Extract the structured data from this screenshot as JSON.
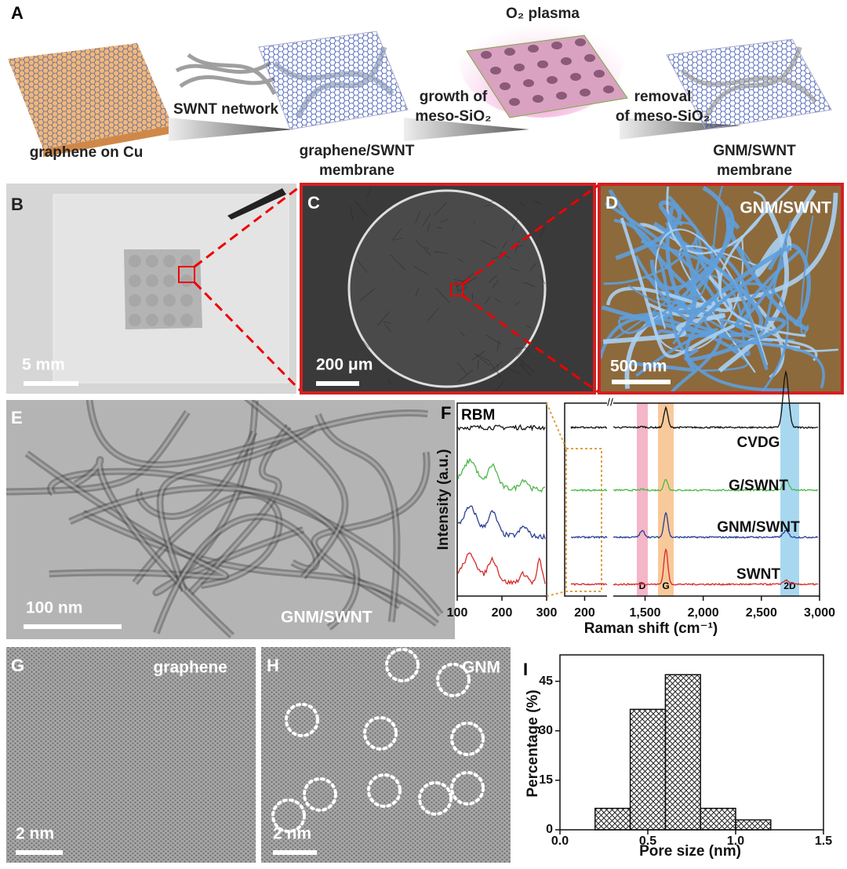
{
  "panel_a": {
    "label": "A",
    "start": "graphene on Cu",
    "arrow1": "SWNT network",
    "stage2": [
      "graphene/SWNT",
      "membrane"
    ],
    "arrow2": [
      "growth of",
      "meso-SiO₂"
    ],
    "plasma": "O₂ plasma",
    "arrow3": [
      "removal",
      "of meso-SiO₂"
    ],
    "stage4": [
      "GNM/SWNT",
      "membrane"
    ]
  },
  "panel_b": {
    "label": "B",
    "scale": "5 mm"
  },
  "panel_c": {
    "label": "C",
    "scale": "200 μm"
  },
  "panel_d": {
    "label": "D",
    "scale": "500 nm",
    "caption": "GNM/SWNT"
  },
  "panel_e": {
    "label": "E",
    "scale": "100 nm",
    "caption": "GNM/SWNT"
  },
  "panel_g": {
    "label": "G",
    "scale": "2 nm",
    "caption": "graphene"
  },
  "panel_h": {
    "label": "H",
    "scale": "2 nm",
    "caption": "GNM"
  },
  "chart_data": [
    {
      "type": "line",
      "label": "F",
      "inset_label": "RBM",
      "xlabel": "Raman shift (cm⁻¹)",
      "ylabel": "Intensity (a.u.)",
      "series": [
        {
          "name": "CVDG",
          "color": "#111111"
        },
        {
          "name": "G/SWNT",
          "color": "#4cb848"
        },
        {
          "name": "GNM/SWNT",
          "color": "#2b3f94"
        },
        {
          "name": "SWNT",
          "color": "#d62a2a"
        }
      ],
      "bands": [
        "D",
        "G",
        "2D"
      ],
      "axes": [
        {
          "xlim": [
            100,
            300
          ],
          "xticks": [
            100,
            200,
            300
          ]
        },
        {
          "xlim": [
            150,
            260
          ],
          "xticks": [
            200
          ]
        },
        {
          "xlim": [
            1200,
            3000
          ],
          "xticks": [
            {
              "value": 1500,
              "label": "1,500"
            },
            {
              "value": 2000,
              "label": "2,000"
            },
            {
              "value": 2500,
              "label": "2,500"
            },
            {
              "value": 3000,
              "label": "3,000"
            }
          ]
        }
      ]
    },
    {
      "type": "histogram",
      "label": "I",
      "xlabel": "Pore size (nm)",
      "ylabel": "Percentage (%)",
      "bins": [
        0.2,
        0.4,
        0.6,
        0.8,
        1.0,
        1.2
      ],
      "values": [
        6.5,
        36.5,
        47,
        6.5,
        3
      ],
      "xlim": [
        0,
        1.5
      ],
      "xticks": [
        {
          "value": 0,
          "label": "0.0"
        },
        0.5,
        {
          "value": 1,
          "label": "1.0"
        },
        1.5
      ],
      "ylim": [
        0,
        53
      ],
      "yticks": [
        0,
        15,
        30,
        45
      ]
    }
  ]
}
